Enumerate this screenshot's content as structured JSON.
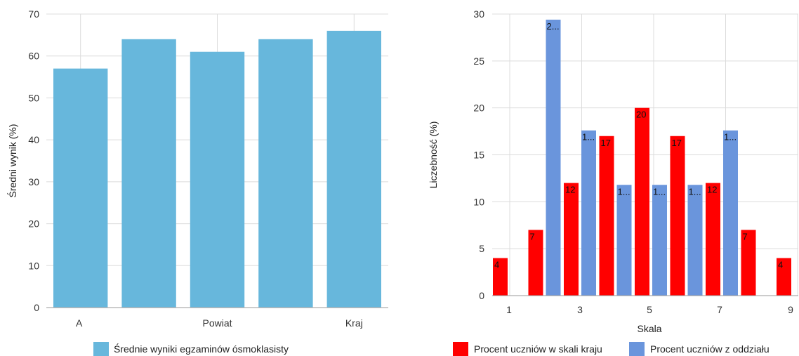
{
  "chart_data": [
    {
      "type": "bar",
      "categories": [
        "A",
        "",
        "Powiat",
        "",
        "Kraj"
      ],
      "series": [
        {
          "name": "Średnie wyniki egzaminów ósmoklasisty",
          "values": [
            57,
            64,
            61,
            64,
            66
          ],
          "color": "#67b7dc"
        }
      ],
      "ylabel": "Średni wynik (%)",
      "ylim": [
        0,
        70
      ],
      "yticks": [
        0,
        10,
        20,
        30,
        40,
        50,
        60,
        70
      ],
      "grid": true,
      "legend": "bottom"
    },
    {
      "type": "bar",
      "x": [
        1,
        2,
        3,
        4,
        5,
        6,
        7,
        8,
        9
      ],
      "xticks": [
        "1",
        "3",
        "5",
        "7",
        "9"
      ],
      "series": [
        {
          "name": "Procent uczniów w skali kraju",
          "values": [
            4,
            7,
            12,
            17,
            20,
            17,
            12,
            7,
            4
          ],
          "labels": [
            "4",
            "7",
            "12",
            "17",
            "20",
            "17",
            "12",
            "7",
            "4"
          ],
          "color": "#ff0000"
        },
        {
          "name": "Procent uczniów z oddziału",
          "values": [
            0,
            29.4,
            17.6,
            11.8,
            11.8,
            11.8,
            17.6,
            0,
            0
          ],
          "labels": [
            "",
            "2...",
            "1...",
            "1...",
            "1...",
            "1...",
            "1...",
            "",
            ""
          ],
          "color": "#6a95dc"
        }
      ],
      "xlabel": "Skala",
      "ylabel": "Liczebność (%)",
      "ylim": [
        0,
        30
      ],
      "yticks": [
        0,
        5,
        10,
        15,
        20,
        25,
        30
      ],
      "grid": true,
      "legend": "bottom"
    }
  ]
}
